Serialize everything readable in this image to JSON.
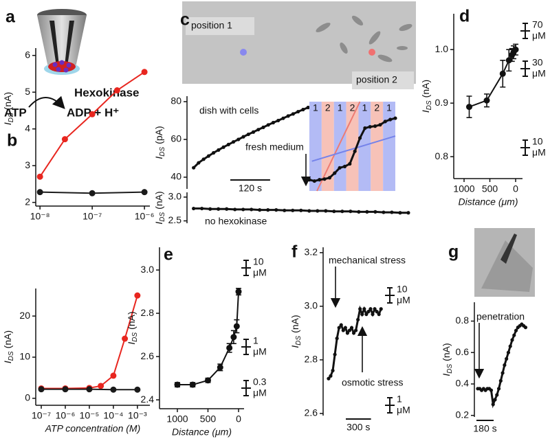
{
  "schematic": {
    "panel": "a",
    "enzyme": "Hexokinase",
    "substrate": "ATP",
    "products": "ADP + H⁺"
  },
  "chart_data": [
    {
      "type": "line",
      "panel": "b",
      "ylabel": {
        "symbol": "I",
        "subscript": "DS",
        "unit": "(nA)"
      },
      "xscale": "log",
      "xlim": [
        8.3e-09,
        1.27e-06
      ],
      "xticks": [
        {
          "value": 1e-08,
          "label": "10⁻⁸"
        },
        {
          "value": 1e-07,
          "label": "10⁻⁷"
        },
        {
          "value": 1e-06,
          "label": "10⁻⁶"
        }
      ],
      "ylim": [
        1.9,
        6.2
      ],
      "yticks": [
        2,
        3,
        4,
        5,
        6
      ],
      "connect": true,
      "markers": "large",
      "series": [
        {
          "color": "#e8261f",
          "x": [
            1e-08,
            3e-08,
            1e-07,
            3e-07,
            1e-06
          ],
          "values": [
            2.7,
            3.72,
            4.4,
            5.05,
            5.55
          ]
        },
        {
          "color": "#1a1a1a",
          "x": [
            1e-08,
            1e-07,
            1e-06
          ],
          "values": [
            2.28,
            2.25,
            2.28
          ]
        }
      ]
    },
    {
      "type": "line",
      "xlabel": "ATP concentration (M)",
      "ylabel": {
        "symbol": "I",
        "subscript": "DS",
        "unit": "(nA)"
      },
      "xscale": "log",
      "xlim": [
        5.9e-08,
        0.0033
      ],
      "xticks": [
        {
          "value": 1e-07,
          "label": "10⁻⁷"
        },
        {
          "value": 1e-06,
          "label": "10⁻⁶"
        },
        {
          "value": 1e-05,
          "label": "10⁻⁵"
        },
        {
          "value": 0.0001,
          "label": "10⁻⁴"
        },
        {
          "value": 0.001,
          "label": "10⁻³"
        }
      ],
      "ylim": [
        -1.7,
        26.7
      ],
      "yticks": [
        0,
        10,
        20
      ],
      "connect": true,
      "markers": "large",
      "series": [
        {
          "color": "#e8261f",
          "x": [
            1e-07,
            1e-06,
            1e-05,
            3e-05,
            0.0001,
            0.0003,
            0.001
          ],
          "values": [
            2.4,
            2.4,
            2.5,
            3,
            5.5,
            14.5,
            25
          ]
        },
        {
          "color": "#1a1a1a",
          "x": [
            1e-07,
            1e-06,
            1e-05,
            0.0001,
            0.001
          ],
          "values": [
            2.2,
            2.2,
            2.2,
            2.1,
            2.1
          ]
        }
      ]
    },
    {
      "type": "line",
      "panel": "c",
      "ylabel": {
        "symbol": "I",
        "subscript": "DS",
        "unit": "(pA)"
      },
      "image_labels": [
        "position 1",
        "position 2"
      ],
      "xlim": [
        -20,
        380
      ],
      "ylim": [
        33.8,
        82.9
      ],
      "yticks": [
        40,
        60,
        80
      ],
      "connect": true,
      "markers": "small",
      "series": [
        {
          "name": "dish with cells",
          "color": "#111111",
          "x": [
            0,
            15,
            30,
            45,
            60,
            75,
            90,
            105,
            120,
            135,
            150,
            165,
            180,
            195,
            210,
            225,
            240,
            255,
            270,
            285,
            300,
            315,
            330,
            345,
            360
          ],
          "values": [
            45,
            47.6,
            49.5,
            51.2,
            52.9,
            54.4,
            55.9,
            57.3,
            58.7,
            60,
            61.4,
            62.7,
            63.9,
            65.2,
            66.4,
            67.7,
            68.9,
            70,
            71.2,
            72.4,
            73.5,
            74.7,
            75.8,
            76.9,
            78
          ]
        }
      ],
      "scale_bar": {
        "value": 120,
        "label": "120 s"
      }
    },
    {
      "type": "line",
      "xlim": [
        0,
        170
      ],
      "ylim": [
        -5,
        130
      ],
      "connect": true,
      "markers": "small",
      "bands": [
        "1",
        "2",
        "1",
        "2",
        "1",
        "2",
        "1"
      ],
      "band_colors": [
        "#b3bbf5",
        "#f7c2b8",
        "#b3bbf5",
        "#f7c2b8",
        "#b3bbf5",
        "#f7c2b8",
        "#b3bbf5"
      ],
      "band_label_colors": [
        "#6b79e8",
        "#e8796c",
        "#6b79e8",
        "#e8796c",
        "#6b79e8",
        "#e8796c",
        "#6b79e8"
      ],
      "annotations": [
        "fresh medium"
      ],
      "series": [
        {
          "color": "#111111",
          "x": [
            0,
            10,
            20,
            30,
            40,
            50,
            60,
            70,
            80,
            90,
            100,
            110,
            120,
            130,
            140,
            150,
            160,
            170
          ],
          "values": [
            12,
            10,
            12,
            13,
            15,
            22,
            30,
            32,
            36,
            55,
            75,
            90,
            92,
            93,
            95,
            100,
            103,
            105
          ]
        }
      ],
      "fit_lines": [
        {
          "color": "#ee7b72",
          "x": [
            15,
            100
          ],
          "values": [
            -5,
            130
          ]
        },
        {
          "color": "#7583ea",
          "x": [
            5,
            170
          ],
          "values": [
            40,
            78
          ]
        }
      ]
    },
    {
      "type": "line",
      "ylabel": {
        "symbol": "I",
        "subscript": "DS",
        "unit": "(nA)"
      },
      "xlim": [
        -20,
        673
      ],
      "ylim": [
        2.45,
        3.1
      ],
      "yticks": [
        {
          "value": 3,
          "label": "3.0"
        },
        {
          "value": 2.5,
          "label": "2.5"
        }
      ],
      "connect": true,
      "markers": "small",
      "series": [
        {
          "name": "no hexokinase",
          "color": "#111111",
          "x": [
            0,
            25,
            50,
            75,
            100,
            125,
            150,
            175,
            200,
            225,
            250,
            275,
            300,
            325,
            350,
            375,
            400,
            425,
            450,
            475,
            500,
            525,
            550,
            575,
            600,
            625,
            650
          ],
          "values": [
            2.76,
            2.76,
            2.75,
            2.75,
            2.75,
            2.74,
            2.74,
            2.74,
            2.73,
            2.73,
            2.73,
            2.72,
            2.72,
            2.72,
            2.71,
            2.71,
            2.71,
            2.7,
            2.7,
            2.7,
            2.69,
            2.69,
            2.69,
            2.68,
            2.68,
            2.67,
            2.67
          ]
        }
      ]
    },
    {
      "type": "line",
      "panel": "d",
      "xlabel": "Distance (μm)",
      "ylabel": {
        "symbol": "I",
        "subscript": "DS",
        "unit": "(nA)"
      },
      "xlim": [
        1200,
        -133
      ],
      "xticks": [
        1000,
        500,
        0
      ],
      "ylim": [
        0.759,
        1.067
      ],
      "yticks": [
        {
          "value": 0.8,
          "label": "0.8"
        },
        {
          "value": 0.9,
          "label": "0.9"
        },
        {
          "value": 1,
          "label": "1.0"
        }
      ],
      "connect": true,
      "markers": "large",
      "series": [
        {
          "color": "#111111",
          "x": [
            900,
            560,
            250,
            130,
            70,
            40,
            0
          ],
          "values": [
            0.893,
            0.905,
            0.955,
            0.98,
            0.99,
            0.995,
            1.0
          ],
          "errors": [
            0.02,
            0.012,
            0.025,
            0.02,
            0.012,
            0.012,
            0.01
          ]
        }
      ],
      "calibration": [
        70,
        30,
        10
      ],
      "calibration_unit": "μM"
    },
    {
      "type": "line",
      "panel": "e",
      "xlabel": "Distance (μm)",
      "ylabel": {
        "symbol": "I",
        "subscript": "DS",
        "unit": "(nA)"
      },
      "xlim": [
        1292,
        -90
      ],
      "xticks": [
        1000,
        500,
        0
      ],
      "ylim": [
        2.359,
        3.105
      ],
      "yticks": [
        {
          "value": 2.4,
          "label": "2.4"
        },
        {
          "value": 2.6,
          "label": "2.6"
        },
        {
          "value": 2.8,
          "label": "2.8"
        },
        {
          "value": 3,
          "label": "3.0"
        }
      ],
      "connect": true,
      "markers": "large",
      "series": [
        {
          "color": "#111111",
          "x": [
            1000,
            750,
            500,
            300,
            150,
            80,
            30,
            0
          ],
          "values": [
            2.47,
            2.47,
            2.49,
            2.55,
            2.64,
            2.69,
            2.74,
            2.9
          ],
          "errors": [
            0.01,
            0.01,
            0.01,
            0.015,
            0.02,
            0.03,
            0.03,
            0.015
          ]
        }
      ],
      "calibration": [
        10,
        1,
        0.3
      ],
      "calibration_unit": "μM"
    },
    {
      "type": "line",
      "panel": "f",
      "ylabel": {
        "symbol": "I",
        "subscript": "DS",
        "unit": "(nA)"
      },
      "xlim": [
        -65,
        1000
      ],
      "ylim": [
        2.592,
        3.22
      ],
      "yticks": [
        {
          "value": 2.6,
          "label": "2.6"
        },
        {
          "value": 2.8,
          "label": "2.8"
        },
        {
          "value": 3,
          "label": "3.0"
        },
        {
          "value": 3.2,
          "label": "3.2"
        }
      ],
      "connect": true,
      "markers": "small",
      "series": [
        {
          "color": "#111111",
          "x": [
            0,
            25,
            50,
            75,
            100,
            125,
            150,
            175,
            200,
            225,
            250,
            275,
            300,
            325,
            350,
            375,
            400,
            425,
            450,
            475,
            500,
            525,
            550,
            575,
            600,
            625
          ],
          "values": [
            2.73,
            2.74,
            2.76,
            2.82,
            2.88,
            2.92,
            2.93,
            2.91,
            2.92,
            2.9,
            2.91,
            2.92,
            2.9,
            2.91,
            2.95,
            2.99,
            2.97,
            2.99,
            2.97,
            2.98,
            2.99,
            2.97,
            2.99,
            2.98,
            2.97,
            2.99
          ]
        }
      ],
      "annotations": [
        "mechanical stress",
        "osmotic stress"
      ],
      "scale_bar": {
        "value": 300,
        "label": "300 s"
      },
      "calibration": [
        10,
        1
      ],
      "calibration_unit": "μM"
    },
    {
      "type": "line",
      "panel": "g",
      "ylabel": {
        "symbol": "I",
        "subscript": "DS",
        "unit": "(nA)"
      },
      "xlim": [
        -36,
        612
      ],
      "ylim": [
        0.19,
        0.92
      ],
      "yticks": [
        {
          "value": 0.2,
          "label": "0.2"
        },
        {
          "value": 0.4,
          "label": "0.4"
        },
        {
          "value": 0.6,
          "label": "0.6"
        },
        {
          "value": 0.8,
          "label": "0.8"
        }
      ],
      "connect": true,
      "markers": "small",
      "series": [
        {
          "color": "#111111",
          "x": [
            0,
            20,
            40,
            60,
            80,
            100,
            120,
            140,
            160,
            180,
            200,
            220,
            240,
            260,
            280,
            300,
            320,
            340,
            360,
            380,
            400,
            420,
            440,
            460,
            480,
            500
          ],
          "values": [
            0.37,
            0.37,
            0.36,
            0.37,
            0.36,
            0.37,
            0.37,
            0.36,
            0.27,
            0.3,
            0.33,
            0.37,
            0.42,
            0.47,
            0.52,
            0.56,
            0.6,
            0.64,
            0.68,
            0.71,
            0.74,
            0.76,
            0.77,
            0.78,
            0.77,
            0.76
          ]
        }
      ],
      "annotations": [
        "penetration"
      ],
      "scale_bar": {
        "value": 180,
        "label": "180 s"
      }
    }
  ]
}
